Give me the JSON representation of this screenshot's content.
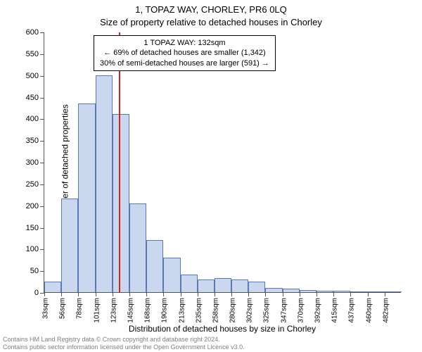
{
  "title_line1": "1, TOPAZ WAY, CHORLEY, PR6 0LQ",
  "title_line2": "Size of property relative to detached houses in Chorley",
  "ylabel": "Number of detached properties",
  "xlabel": "Distribution of detached houses by size in Chorley",
  "footer_line1": "Contains HM Land Registry data © Crown copyright and database right 2024.",
  "footer_line2": "Contains public sector information licensed under the Open Government Licence v3.0.",
  "annotation": {
    "line1": "1 TOPAZ WAY: 132sqm",
    "line2": "← 69% of detached houses are smaller (1,342)",
    "line3": "30% of semi-detached houses are larger (591) →"
  },
  "chart": {
    "type": "histogram",
    "background_color": "#ffffff",
    "bar_fill": "#c9d8ef",
    "bar_stroke": "#5a79b6",
    "ref_value": 132,
    "ref_color": "#d62020",
    "ref_width": 2,
    "ylim": [
      0,
      600
    ],
    "ytick_step": 50,
    "xtick_labels": [
      "33sqm",
      "56sqm",
      "78sqm",
      "101sqm",
      "123sqm",
      "145sqm",
      "168sqm",
      "190sqm",
      "213sqm",
      "235sqm",
      "258sqm",
      "280sqm",
      "302sqm",
      "325sqm",
      "347sqm",
      "370sqm",
      "392sqm",
      "415sqm",
      "437sqm",
      "460sqm",
      "482sqm"
    ],
    "bin_start": 33,
    "bin_width": 22.5,
    "values": [
      25,
      215,
      435,
      500,
      410,
      205,
      120,
      80,
      40,
      30,
      32,
      30,
      25,
      10,
      8,
      5,
      4,
      3,
      2,
      0,
      1
    ],
    "axis_color": "#555555",
    "tick_fontsize": 11,
    "label_fontsize": 12,
    "title_fontsize": 13
  }
}
